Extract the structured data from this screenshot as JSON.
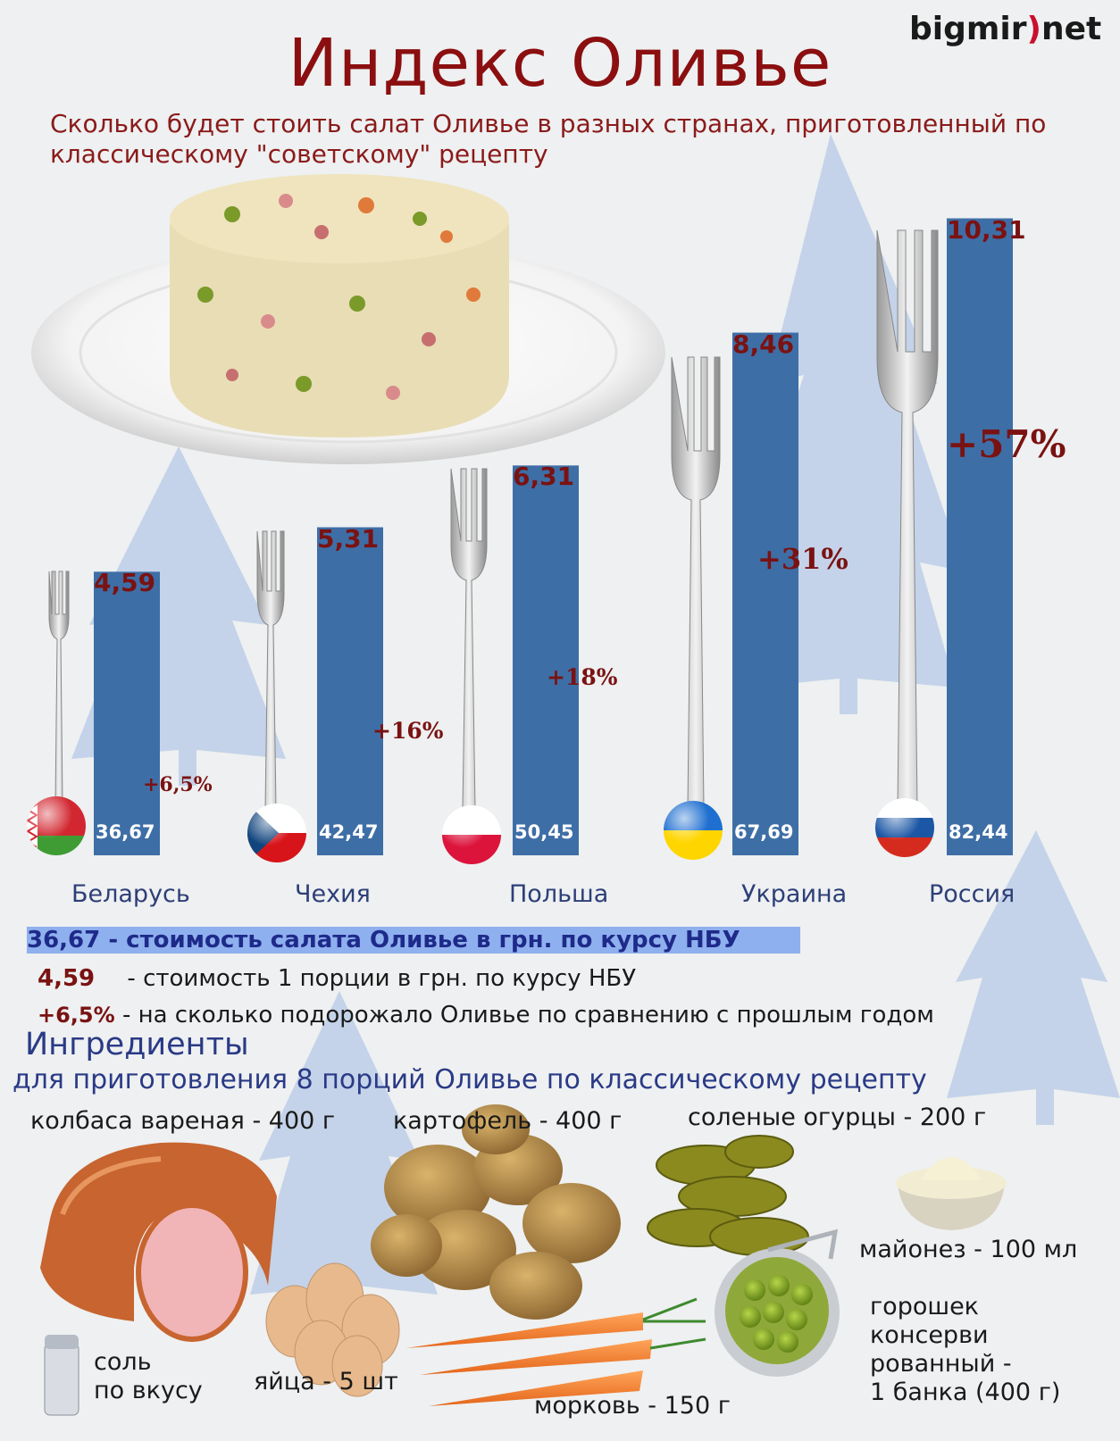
{
  "logo": {
    "left": "bigmir",
    "paren": ")",
    "right": "net"
  },
  "title": "Индекс Оливье",
  "subtitle": "Сколько будет стоить салат Оливье в разных странах, приготовленный по классическому \"советскому\" рецепту",
  "colors": {
    "bar": "#3e6ea6",
    "title": "#8b0f10",
    "value": "#7a1212",
    "legend_highlight": "#8fb0ee",
    "tree": "#b6c9e6"
  },
  "chart_data": {
    "type": "bar",
    "title": "Индекс Оливье",
    "categories": [
      "Беларусь",
      "Чехия",
      "Польша",
      "Украина",
      "Россия"
    ],
    "series": [
      {
        "values": [
          4.59,
          5.31,
          6.31,
          8.46,
          10.31
        ],
        "labels": [
          "4,59",
          "5,31",
          "6,31",
          "8,46",
          "10,31"
        ]
      }
    ],
    "totals": [
      36.67,
      42.47,
      50.45,
      67.69,
      82.44
    ],
    "total_labels": [
      "36,67",
      "42,47",
      "50,45",
      "67,69",
      "82,44"
    ],
    "change_labels": [
      "+6,5%",
      "+16%",
      "+18%",
      "+31%",
      "+57%"
    ],
    "flags": [
      "belarus-flag",
      "czech-flag",
      "poland-flag",
      "ukraine-flag",
      "russia-flag"
    ],
    "ylim": [
      0,
      11
    ],
    "grid": false,
    "xlabel": "",
    "ylabel": ""
  },
  "legend": [
    {
      "key": "36,67",
      "text": "-  стоимость салата Оливье в грн. по курсу НБУ"
    },
    {
      "key": "4,59",
      "text": "- стоимость 1 порции в грн. по курсу НБУ"
    },
    {
      "key": "+6,5%",
      "text": "- на сколько подорожало Оливье по сравнению с прошлым годом"
    }
  ],
  "ingredients": {
    "title": "Ингредиенты",
    "subtitle": "для приготовления 8 порций Оливье по классическому рецепту",
    "sausage": "колбаса вареная - 400 г",
    "potato": "картофель - 400 г",
    "pickles": "соленые огурцы - 200 г",
    "mayo": "майонез - 100 мл",
    "peas": "горошек консерви рованный - 1 банка (400 г)",
    "peas_lines": [
      "горошек",
      "консерви",
      "рованный -",
      "1 банка (400 г)"
    ],
    "salt_lines": [
      "соль",
      "по вкусу"
    ],
    "eggs": "яйца - 5 шт",
    "carrot": "морковь - 150 г"
  }
}
